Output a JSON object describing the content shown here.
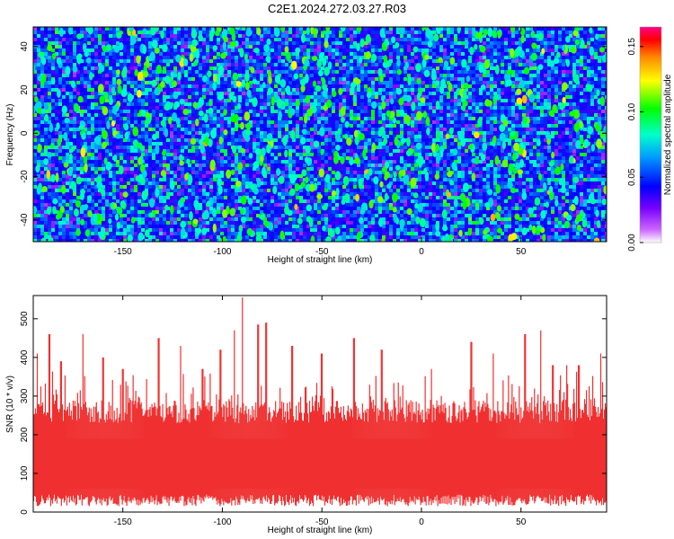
{
  "title": "C2E1.2024.272.03.27.R03",
  "chart_data": [
    {
      "type": "heatmap",
      "xlabel": "Height of straight line (km)",
      "ylabel": "Frequency (Hz)",
      "xlim": [
        -195,
        93
      ],
      "ylim": [
        -50,
        49
      ],
      "xticks": [
        -150,
        -100,
        -50,
        0,
        50
      ],
      "yticks": [
        -40,
        -20,
        0,
        20,
        40
      ],
      "colorbar": {
        "label": "Normalized spectral amplitude",
        "range": [
          0.0,
          0.165
        ],
        "ticks": [
          "0.00",
          "0.05",
          "0.10",
          "0.15"
        ],
        "tick_values": [
          0.0,
          0.05,
          0.1,
          0.15
        ],
        "colormap": "rainbow (white-violet-blue-cyan-green-yellow-orange-red-magenta)"
      },
      "dominant_level": "blue (~0.02)"
    },
    {
      "type": "bar",
      "xlabel": "Height of straight line (km)",
      "ylabel": "SNR (10 * v/v)",
      "xlim": [
        -195,
        93
      ],
      "ylim": [
        0,
        560
      ],
      "xticks": [
        -150,
        -100,
        -50,
        0,
        50
      ],
      "yticks": [
        0,
        100,
        200,
        300,
        400,
        500
      ],
      "series_color": "#f03030",
      "typical_range": [
        40,
        260
      ],
      "peaks": [
        {
          "x": -193,
          "y": 410
        },
        {
          "x": -187,
          "y": 460
        },
        {
          "x": -181,
          "y": 390
        },
        {
          "x": -170,
          "y": 460
        },
        {
          "x": -160,
          "y": 400
        },
        {
          "x": -150,
          "y": 370
        },
        {
          "x": -132,
          "y": 450
        },
        {
          "x": -121,
          "y": 430
        },
        {
          "x": -110,
          "y": 370
        },
        {
          "x": -101,
          "y": 420
        },
        {
          "x": -94,
          "y": 470
        },
        {
          "x": -90,
          "y": 555
        },
        {
          "x": -82,
          "y": 485
        },
        {
          "x": -78,
          "y": 490
        },
        {
          "x": -65,
          "y": 430
        },
        {
          "x": -50,
          "y": 410
        },
        {
          "x": -34,
          "y": 450
        },
        {
          "x": -20,
          "y": 420
        },
        {
          "x": 5,
          "y": 370
        },
        {
          "x": 25,
          "y": 440
        },
        {
          "x": 36,
          "y": 410
        },
        {
          "x": 52,
          "y": 460
        },
        {
          "x": 60,
          "y": 470
        },
        {
          "x": 66,
          "y": 380
        },
        {
          "x": 73,
          "y": 380
        },
        {
          "x": 79,
          "y": 380
        },
        {
          "x": 90,
          "y": 410
        }
      ]
    }
  ]
}
